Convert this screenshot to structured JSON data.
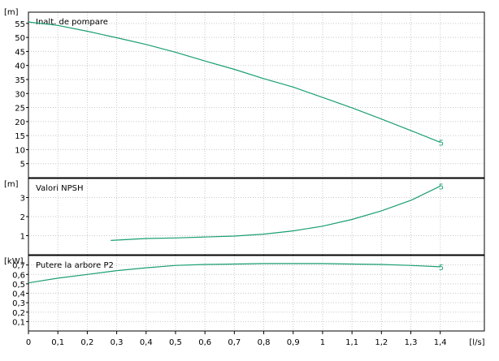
{
  "chart_data": {
    "type": "line",
    "x_axis": {
      "unit_label": "[l/s]",
      "ticks": [
        "0",
        "0,1",
        "0,2",
        "0,3",
        "0,4",
        "0,5",
        "0,6",
        "0,7",
        "0,8",
        "0,9",
        "1",
        "1,1",
        "1,2",
        "1,3",
        "1,4"
      ],
      "range": [
        0,
        1.55
      ],
      "grid": true
    },
    "curve_color": "#1a9e74",
    "panels": [
      {
        "id": "head",
        "title": "Inalt. de pompare",
        "y_unit": "[m]",
        "y_ticks": [
          "5",
          "10",
          "15",
          "20",
          "25",
          "30",
          "35",
          "40",
          "45",
          "50",
          "55"
        ],
        "y_tick_values": [
          5,
          10,
          15,
          20,
          25,
          30,
          35,
          40,
          45,
          50,
          55
        ],
        "ylim": [
          0,
          59
        ],
        "series": [
          {
            "marker_label": "5",
            "x": [
              0,
              0.1,
              0.2,
              0.3,
              0.4,
              0.5,
              0.6,
              0.7,
              0.8,
              0.9,
              1.0,
              1.1,
              1.2,
              1.3,
              1.4
            ],
            "y": [
              55.5,
              54.3,
              52.2,
              49.9,
              47.5,
              44.7,
              41.6,
              38.6,
              35.3,
              32.3,
              28.6,
              24.9,
              20.9,
              16.8,
              12.6
            ]
          }
        ]
      },
      {
        "id": "npsh",
        "title": "Valori NPSH",
        "y_unit": "[m]",
        "y_ticks": [
          "1",
          "2",
          "3"
        ],
        "y_tick_values": [
          1,
          2,
          3
        ],
        "ylim": [
          0,
          4
        ],
        "series": [
          {
            "marker_label": "5",
            "x": [
              0.28,
              0.4,
              0.5,
              0.6,
              0.7,
              0.8,
              0.9,
              1.0,
              1.1,
              1.2,
              1.3,
              1.4
            ],
            "y": [
              0.75,
              0.85,
              0.88,
              0.93,
              0.98,
              1.08,
              1.25,
              1.5,
              1.85,
              2.3,
              2.85,
              3.6
            ]
          }
        ]
      },
      {
        "id": "power",
        "title": "Putere la arbore P2",
        "y_unit": "[kW]",
        "y_ticks": [
          "0,1",
          "0,2",
          "0,3",
          "0,4",
          "0,5",
          "0,6",
          "0,7"
        ],
        "y_tick_values": [
          0.1,
          0.2,
          0.3,
          0.4,
          0.5,
          0.6,
          0.7
        ],
        "ylim": [
          0,
          0.8
        ],
        "series": [
          {
            "marker_label": "5",
            "x": [
              0,
              0.1,
              0.2,
              0.3,
              0.4,
              0.5,
              0.6,
              0.7,
              0.8,
              0.9,
              1.0,
              1.1,
              1.2,
              1.3,
              1.4
            ],
            "y": [
              0.51,
              0.56,
              0.6,
              0.64,
              0.67,
              0.695,
              0.705,
              0.71,
              0.715,
              0.715,
              0.715,
              0.71,
              0.705,
              0.695,
              0.68
            ]
          }
        ]
      }
    ]
  }
}
